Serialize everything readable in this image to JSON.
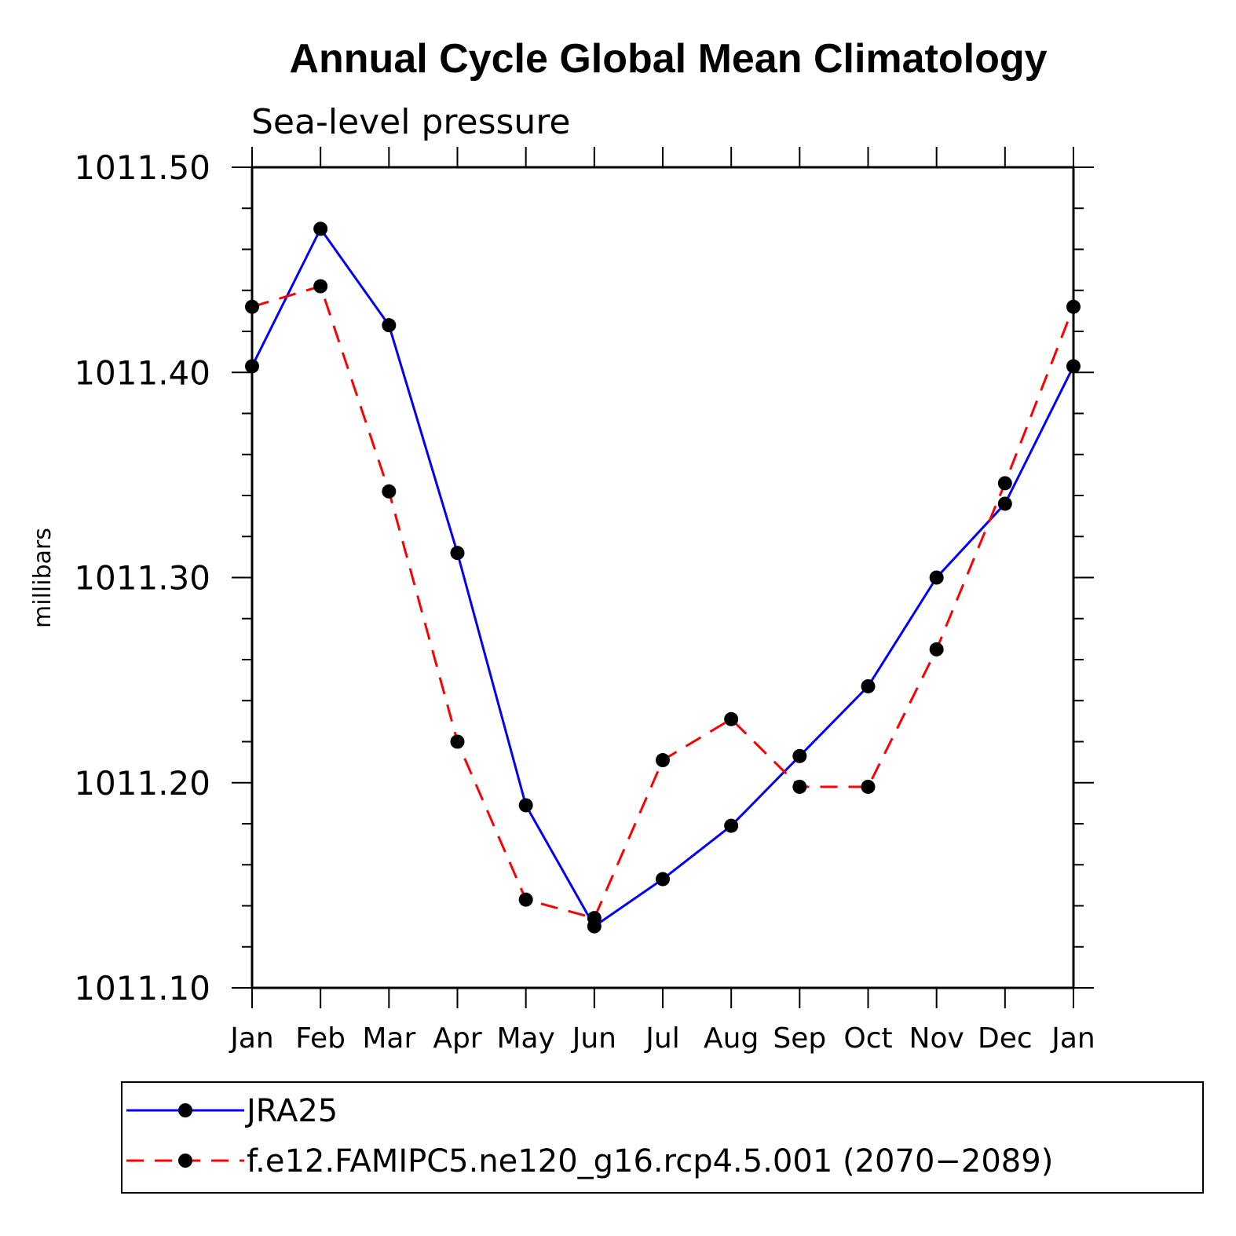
{
  "chart_data": {
    "type": "line",
    "title": "Annual Cycle Global Mean Climatology",
    "subtitle": "Sea-level pressure",
    "xlabel": "",
    "ylabel": "millibars",
    "categories": [
      "Jan",
      "Feb",
      "Mar",
      "Apr",
      "May",
      "Jun",
      "Jul",
      "Aug",
      "Sep",
      "Oct",
      "Nov",
      "Dec",
      "Jan"
    ],
    "yticks": [
      "1011.10",
      "1011.20",
      "1011.30",
      "1011.40",
      "1011.50"
    ],
    "ytick_values": [
      1011.1,
      1011.2,
      1011.3,
      1011.4,
      1011.5
    ],
    "ylim": [
      1011.1,
      1011.5
    ],
    "grid": false,
    "legend_position": "bottom",
    "series": [
      {
        "name": "JRA25",
        "color": "#0000ff",
        "line_style": "solid",
        "values": [
          1011.403,
          1011.47,
          1011.423,
          1011.312,
          1011.189,
          1011.13,
          1011.153,
          1011.179,
          1011.213,
          1011.247,
          1011.3,
          1011.336,
          1011.403
        ]
      },
      {
        "name": "f.e12.FAMIPC5.ne120_g16.rcp4.5.001 (2070−2089)",
        "color": "#ff0000",
        "line_style": "dashed",
        "values": [
          1011.432,
          1011.442,
          1011.342,
          1011.22,
          1011.143,
          1011.134,
          1011.211,
          1011.231,
          1011.198,
          1011.198,
          1011.265,
          1011.346,
          1011.432
        ]
      }
    ]
  }
}
